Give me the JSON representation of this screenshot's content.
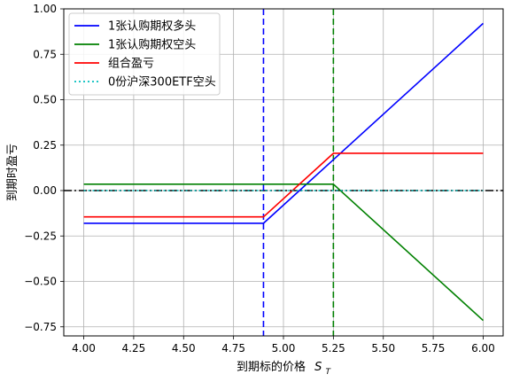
{
  "chart_data": {
    "type": "line",
    "xlabel": "到期标的价格",
    "xlabel_symbol": "S",
    "xlabel_subscript": "T",
    "ylabel": "到期时盈亏",
    "xlim": [
      3.9,
      6.1
    ],
    "ylim": [
      -0.8,
      1.0
    ],
    "x_ticks": [
      4.0,
      4.25,
      4.5,
      4.75,
      5.0,
      5.25,
      5.5,
      5.75,
      6.0
    ],
    "x_tick_labels": [
      "4.00",
      "4.25",
      "4.50",
      "4.75",
      "5.00",
      "5.25",
      "5.50",
      "5.75",
      "6.00"
    ],
    "y_ticks": [
      -0.75,
      -0.5,
      -0.25,
      0.0,
      0.25,
      0.5,
      0.75,
      1.0
    ],
    "y_tick_labels": [
      "−0.75",
      "−0.50",
      "−0.25",
      "0.00",
      "0.25",
      "0.50",
      "0.75",
      "1.00"
    ],
    "grid": true,
    "legend_position": "top-left",
    "series": [
      {
        "name": "1张认购期权多头",
        "color": "#0000ff",
        "style": "solid",
        "x": [
          4.0,
          4.9,
          6.0
        ],
        "y": [
          -0.18,
          -0.18,
          0.92
        ]
      },
      {
        "name": "1张认购期权空头",
        "color": "#008000",
        "style": "solid",
        "x": [
          4.0,
          5.25,
          6.0
        ],
        "y": [
          0.035,
          0.035,
          -0.715
        ]
      },
      {
        "name": "组合盈亏",
        "color": "#ff0000",
        "style": "solid",
        "x": [
          4.0,
          4.9,
          5.25,
          6.0
        ],
        "y": [
          -0.145,
          -0.145,
          0.205,
          0.205
        ]
      },
      {
        "name": "0份沪深300ETF空头",
        "color": "#00bfbf",
        "style": "dotted",
        "x": [
          4.0,
          6.0
        ],
        "y": [
          0,
          0
        ]
      }
    ],
    "reference_lines": [
      {
        "orientation": "horizontal",
        "value": 0,
        "color": "#000000",
        "style": "dashdot"
      },
      {
        "orientation": "vertical",
        "value": 4.9,
        "color": "#0000ff",
        "style": "dashed"
      },
      {
        "orientation": "vertical",
        "value": 5.25,
        "color": "#008000",
        "style": "dashed"
      }
    ]
  }
}
